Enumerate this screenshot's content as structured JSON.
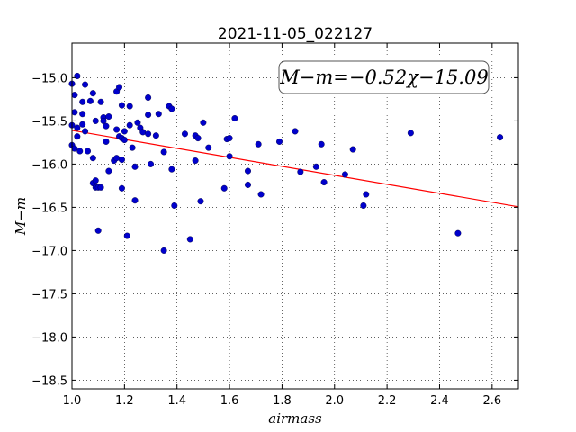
{
  "chart_data": {
    "type": "scatter",
    "title": "2021-11-05_022127",
    "xlabel": "airmass",
    "ylabel": "M−m",
    "xlim": [
      1.0,
      2.7
    ],
    "ylim": [
      -18.6,
      -14.6
    ],
    "y_inverted": true,
    "grid": true,
    "x_ticks": [
      "1.0",
      "1.2",
      "1.4",
      "1.6",
      "1.8",
      "2.0",
      "2.2",
      "2.4",
      "2.6"
    ],
    "y_ticks": [
      "−15.0",
      "−15.5",
      "−16.0",
      "−16.5",
      "−17.0",
      "−17.5",
      "−18.0",
      "−18.5"
    ],
    "annotation": "M−m=−0.52χ−15.09",
    "fit": {
      "slope": -0.52,
      "intercept": -15.09,
      "color": "#ff0000"
    },
    "point_color": "#0000cc",
    "points": [
      [
        1.0,
        -15.07
      ],
      [
        1.01,
        -15.2
      ],
      [
        1.01,
        -15.4
      ],
      [
        1.0,
        -15.55
      ],
      [
        1.02,
        -15.58
      ],
      [
        1.02,
        -15.68
      ],
      [
        1.0,
        -15.78
      ],
      [
        1.01,
        -15.82
      ],
      [
        1.02,
        -14.98
      ],
      [
        1.03,
        -15.85
      ],
      [
        1.04,
        -15.28
      ],
      [
        1.04,
        -15.42
      ],
      [
        1.04,
        -15.54
      ],
      [
        1.05,
        -15.62
      ],
      [
        1.05,
        -15.08
      ],
      [
        1.06,
        -15.85
      ],
      [
        1.07,
        -15.27
      ],
      [
        1.08,
        -15.18
      ],
      [
        1.08,
        -15.93
      ],
      [
        1.09,
        -15.5
      ],
      [
        1.08,
        -16.22
      ],
      [
        1.09,
        -16.19
      ],
      [
        1.09,
        -16.27
      ],
      [
        1.1,
        -16.27
      ],
      [
        1.11,
        -16.27
      ],
      [
        1.1,
        -16.77
      ],
      [
        1.11,
        -15.28
      ],
      [
        1.12,
        -15.46
      ],
      [
        1.12,
        -15.5
      ],
      [
        1.13,
        -15.56
      ],
      [
        1.13,
        -15.74
      ],
      [
        1.14,
        -15.45
      ],
      [
        1.14,
        -16.08
      ],
      [
        1.16,
        -15.96
      ],
      [
        1.17,
        -15.93
      ],
      [
        1.17,
        -15.16
      ],
      [
        1.18,
        -15.11
      ],
      [
        1.17,
        -15.6
      ],
      [
        1.18,
        -15.68
      ],
      [
        1.19,
        -15.7
      ],
      [
        1.19,
        -15.32
      ],
      [
        1.19,
        -15.95
      ],
      [
        1.19,
        -16.28
      ],
      [
        1.2,
        -15.62
      ],
      [
        1.2,
        -15.72
      ],
      [
        1.21,
        -16.83
      ],
      [
        1.22,
        -15.33
      ],
      [
        1.22,
        -15.55
      ],
      [
        1.23,
        -15.81
      ],
      [
        1.24,
        -16.03
      ],
      [
        1.24,
        -16.42
      ],
      [
        1.25,
        -15.52
      ],
      [
        1.26,
        -15.58
      ],
      [
        1.27,
        -15.63
      ],
      [
        1.29,
        -15.23
      ],
      [
        1.29,
        -15.43
      ],
      [
        1.29,
        -15.65
      ],
      [
        1.3,
        -16.0
      ],
      [
        1.32,
        -15.67
      ],
      [
        1.33,
        -15.42
      ],
      [
        1.35,
        -15.86
      ],
      [
        1.35,
        -17.0
      ],
      [
        1.37,
        -15.33
      ],
      [
        1.38,
        -15.36
      ],
      [
        1.38,
        -16.06
      ],
      [
        1.39,
        -16.48
      ],
      [
        1.43,
        -15.65
      ],
      [
        1.45,
        -16.87
      ],
      [
        1.47,
        -15.67
      ],
      [
        1.47,
        -15.96
      ],
      [
        1.48,
        -15.7
      ],
      [
        1.49,
        -16.43
      ],
      [
        1.5,
        -15.52
      ],
      [
        1.52,
        -15.81
      ],
      [
        1.58,
        -16.28
      ],
      [
        1.59,
        -15.71
      ],
      [
        1.6,
        -15.7
      ],
      [
        1.6,
        -15.91
      ],
      [
        1.62,
        -15.47
      ],
      [
        1.67,
        -16.08
      ],
      [
        1.67,
        -16.24
      ],
      [
        1.71,
        -15.77
      ],
      [
        1.72,
        -16.35
      ],
      [
        1.79,
        -15.74
      ],
      [
        1.85,
        -15.62
      ],
      [
        1.87,
        -16.09
      ],
      [
        1.93,
        -16.03
      ],
      [
        1.95,
        -15.77
      ],
      [
        1.96,
        -16.21
      ],
      [
        2.04,
        -16.12
      ],
      [
        2.07,
        -15.83
      ],
      [
        2.11,
        -16.48
      ],
      [
        2.12,
        -16.35
      ],
      [
        2.29,
        -15.64
      ],
      [
        2.47,
        -16.8
      ],
      [
        2.63,
        -15.69
      ]
    ]
  }
}
